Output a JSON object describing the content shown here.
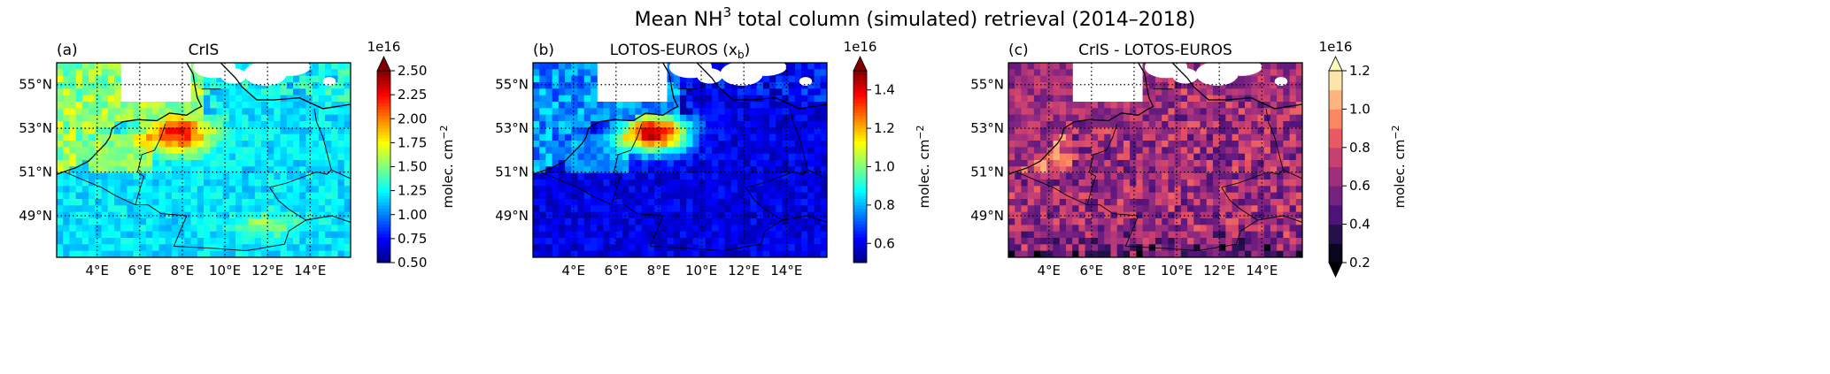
{
  "figure": {
    "title_prefix": "Mean NH",
    "title_sub": "3",
    "title_suffix": " total column (simulated) retrieval (2014–2018)"
  },
  "chart_data": [
    {
      "type": "heatmap",
      "panel_label": "(a)",
      "title": "CrIS",
      "colormap": "jet",
      "colorbar": {
        "label": "molec. cm",
        "label_exp": "−2",
        "scale": "1e16",
        "min": 0.5,
        "max": 2.5,
        "ticks": [
          "0.50",
          "0.75",
          "1.00",
          "1.25",
          "1.50",
          "1.75",
          "2.00",
          "2.25",
          "2.50"
        ],
        "extend": "max"
      },
      "x_ticks": [
        "4°E",
        "6°E",
        "8°E",
        "10°E",
        "12°E",
        "14°E"
      ],
      "y_ticks": [
        "49°N",
        "51°N",
        "53°N",
        "55°N"
      ],
      "xlim": [
        2.1,
        15.9
      ],
      "ylim": [
        47.1,
        56.0
      ],
      "grid": true,
      "field": {
        "background": 1.2,
        "hotspot_center": [
          7.8,
          52.8
        ],
        "hotspot_peak": 2.25,
        "secondary_hotspot": [
          12.0,
          48.6
        ]
      }
    },
    {
      "type": "heatmap",
      "panel_label": "(b)",
      "title": "LOTOS-EUROS (x",
      "title_sub": "b",
      "title_end": ")",
      "colormap": "jet",
      "colorbar": {
        "label": "molec. cm",
        "label_exp": "−2",
        "scale": "1e16",
        "min": 0.5,
        "max": 1.5,
        "ticks": [
          "0.6",
          "0.8",
          "1.0",
          "1.2",
          "1.4"
        ],
        "extend": "max"
      },
      "x_ticks": [
        "4°E",
        "6°E",
        "8°E",
        "10°E",
        "12°E",
        "14°E"
      ],
      "y_ticks": [
        "49°N",
        "51°N",
        "53°N",
        "55°N"
      ],
      "xlim": [
        2.1,
        15.9
      ],
      "ylim": [
        47.1,
        56.0
      ],
      "grid": true,
      "field": {
        "background": 0.6,
        "hotspot_center": [
          7.8,
          52.8
        ],
        "hotspot_peak": 1.45
      }
    },
    {
      "type": "heatmap",
      "panel_label": "(c)",
      "title": "CrIS - LOTOS-EUROS",
      "colormap": "magma",
      "colorbar": {
        "label": "molec. cm",
        "label_exp": "−2",
        "scale": "1e16",
        "min": 0.2,
        "max": 1.2,
        "ticks": [
          "0.2",
          "0.4",
          "0.6",
          "0.8",
          "1.0",
          "1.2"
        ],
        "extend": "both"
      },
      "x_ticks": [
        "4°E",
        "6°E",
        "8°E",
        "10°E",
        "12°E",
        "14°E"
      ],
      "y_ticks": [
        "49°N",
        "51°N",
        "53°N",
        "55°N"
      ],
      "xlim": [
        2.1,
        15.9
      ],
      "ylim": [
        47.1,
        56.0
      ],
      "grid": true,
      "field": {
        "background": 0.65
      }
    }
  ]
}
